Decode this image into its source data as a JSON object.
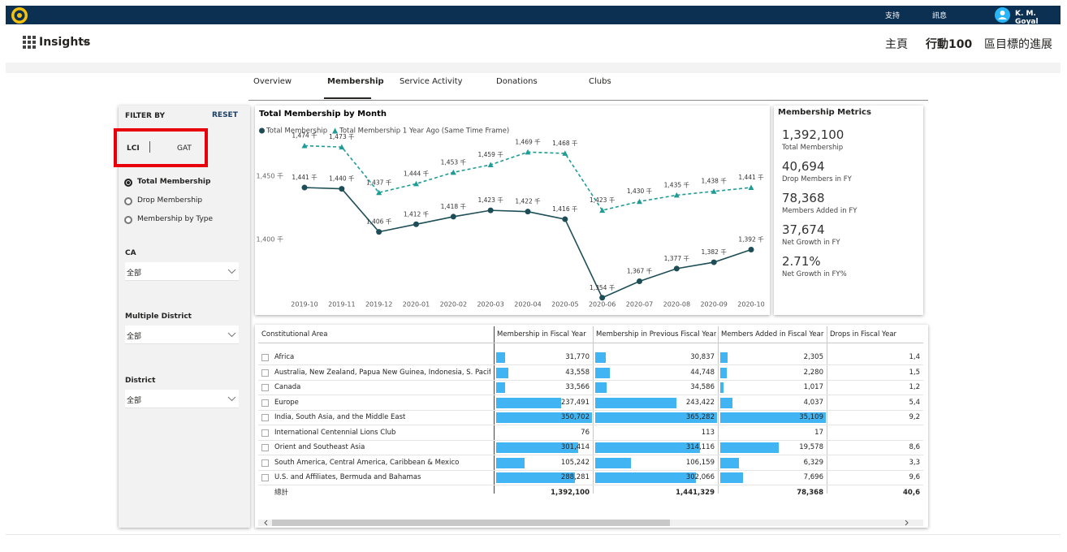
{
  "header": {
    "support": "支持",
    "messages": "訊息",
    "user": "K. M. Goyal"
  },
  "nav": {
    "app": "Insights",
    "links": [
      "主頁",
      "行動100",
      "區目標的進展"
    ]
  },
  "tabs": {
    "items": [
      "Overview",
      "Membership",
      "Service Activity",
      "Donations",
      "Clubs"
    ],
    "active": 1
  },
  "filters": {
    "title": "FILTER BY",
    "reset": "RESET",
    "toggle": [
      "LCI",
      "GAT"
    ],
    "options": [
      "Total Membership",
      "Drop Membership",
      "Membership by Type"
    ],
    "selected": 0,
    "dropdowns": [
      {
        "label": "CA",
        "value": "全部"
      },
      {
        "label": "Multiple District",
        "value": "全部"
      },
      {
        "label": "District",
        "value": "全部"
      }
    ]
  },
  "chart_data": {
    "type": "line",
    "title": "Total Membership by Month",
    "categories": [
      "2019-10",
      "2019-11",
      "2019-12",
      "2020-01",
      "2020-02",
      "2020-03",
      "2020-04",
      "2020-05",
      "2020-06",
      "2020-07",
      "2020-08",
      "2020-09",
      "2020-10"
    ],
    "series": [
      {
        "name": "Total Membership",
        "color": "#1d4e58",
        "dashed": false,
        "marker": "circle",
        "values": [
          1441,
          1440,
          1406,
          1412,
          1418,
          1423,
          1422,
          1416,
          1354,
          1367,
          1377,
          1382,
          1392
        ],
        "value_labels": [
          "1,441 千",
          "1,440 千",
          "1,406 千",
          "1,412 千",
          "1,418 千",
          "1,423 千",
          "1,422 千",
          "1,416 千",
          "1,354 千",
          "1,367 千",
          "1,377 千",
          "1,382 千",
          "1,392 千"
        ]
      },
      {
        "name": "Total Membership 1 Year Ago (Same Time Frame)",
        "color": "#1f9c95",
        "dashed": true,
        "marker": "triangle",
        "values": [
          1474,
          1473,
          1437,
          1444,
          1453,
          1459,
          1469,
          1468,
          1423,
          1430,
          1435,
          1438,
          1441
        ],
        "value_labels": [
          "1,474 千",
          "1,473 千",
          "1,437 千",
          "1,444 千",
          "1,453 千",
          "1,459 千",
          "1,469 千",
          "1,468 千",
          "1,423 千",
          "1,430 千",
          "1,435 千",
          "1,438 千",
          "1,441 千"
        ]
      }
    ],
    "ylim": [
      1350,
      1490
    ],
    "yticks": [
      {
        "value": 1400,
        "label": "1,400 千"
      },
      {
        "value": 1450,
        "label": "1,450 千"
      }
    ],
    "grid": false
  },
  "metrics": {
    "title": "Membership Metrics",
    "items": [
      {
        "value": "1,392,100",
        "label": "Total Membership"
      },
      {
        "value": "40,694",
        "label": "Drop Members in FY"
      },
      {
        "value": "78,368",
        "label": "Members Added in FY"
      },
      {
        "value": "37,674",
        "label": "Net Growth in FY"
      },
      {
        "value": "2.71%",
        "label": "Net Growth in FY%"
      }
    ]
  },
  "table": {
    "columns": [
      "Constitutional Area",
      "Membership in Fiscal Year",
      "Membership in Previous Fiscal Year",
      "Members Added in Fiscal Year",
      "Drops in Fiscal Year"
    ],
    "bar_columns": [
      1,
      2,
      3
    ],
    "rows": [
      [
        "Africa",
        "31,770",
        "30,837",
        "2,305",
        "1,4"
      ],
      [
        "Australia, New Zealand, Papua New Guinea, Indonesia, S. Pacific",
        "43,558",
        "44,748",
        "2,280",
        "1,5"
      ],
      [
        "Canada",
        "33,566",
        "34,586",
        "1,017",
        "1,2"
      ],
      [
        "Europe",
        "237,491",
        "243,422",
        "4,037",
        "5,4"
      ],
      [
        "India, South Asia, and the Middle East",
        "350,702",
        "365,282",
        "35,109",
        "9,2"
      ],
      [
        "International Centennial Lions Club",
        "76",
        "113",
        "17",
        null
      ],
      [
        "Orient and Southeast Asia",
        "301,414",
        "314,116",
        "19,578",
        "8,6"
      ],
      [
        "South America, Central America, Caribbean & Mexico",
        "105,242",
        "106,159",
        "6,329",
        "3,3"
      ],
      [
        "U.S. and Affiliates, Bermuda and Bahamas",
        "288,281",
        "302,066",
        "7,696",
        "9,6"
      ]
    ],
    "total": [
      "總計",
      "1,392,100",
      "1,441,329",
      "78,368",
      "40,6"
    ]
  }
}
